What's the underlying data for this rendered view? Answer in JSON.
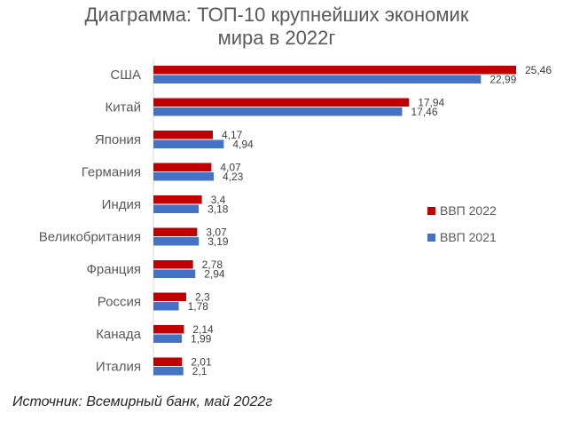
{
  "chart_data": {
    "type": "bar",
    "orientation": "horizontal",
    "title_line1": "Диаграмма: ТОП-10 крупнейших экономик",
    "title_line2": "мира в 2022г",
    "categories": [
      "США",
      "Китай",
      "Япония",
      "Германия",
      "Индия",
      "Великобритания",
      "Франция",
      "Россия",
      "Канада",
      "Италия"
    ],
    "series": [
      {
        "name": "ВВП 2022",
        "color": "#c00000",
        "values": [
          25.46,
          17.94,
          4.17,
          4.07,
          3.4,
          3.07,
          2.78,
          2.3,
          2.14,
          2.01
        ],
        "labels": [
          "25,46",
          "17,94",
          "4,17",
          "4,07",
          "3,4",
          "3,07",
          "2,78",
          "2,3",
          "2,14",
          "2,01"
        ]
      },
      {
        "name": "ВВП 2021",
        "color": "#4472c4",
        "values": [
          22.99,
          17.46,
          4.94,
          4.23,
          3.18,
          3.19,
          2.94,
          1.78,
          1.99,
          2.1
        ],
        "labels": [
          "22,99",
          "17,46",
          "4,94",
          "4,23",
          "3,18",
          "3,19",
          "2,94",
          "1,78",
          "1,99",
          "2,1"
        ]
      }
    ],
    "xlim": [
      0,
      25.46
    ],
    "grid": false,
    "legend_position": "right"
  },
  "source": "Источник: Всемирный банк, май 2022г"
}
